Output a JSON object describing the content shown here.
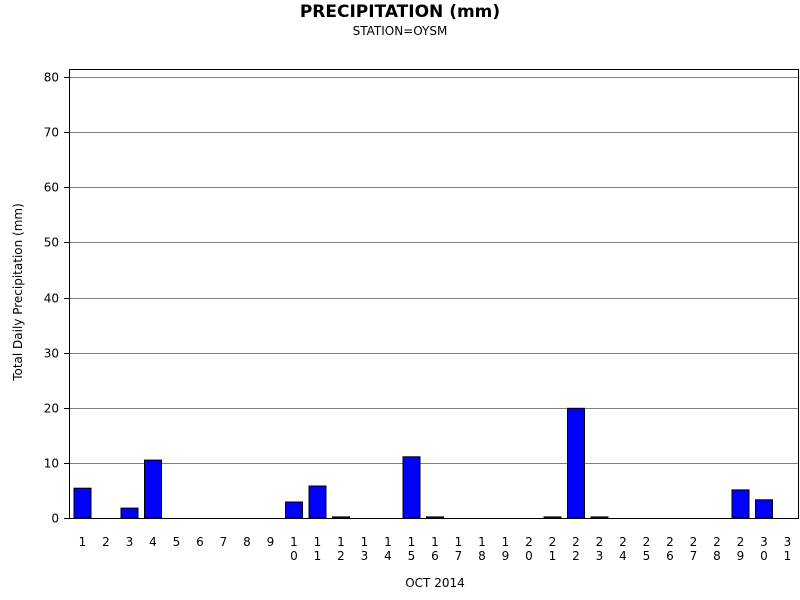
{
  "chart_data": {
    "type": "bar",
    "title": "PRECIPITATION (mm)",
    "subtitle": "STATION=OYSM",
    "xlabel": "OCT 2014",
    "ylabel": "Total Daily Precipitation (mm)",
    "ylim": [
      0,
      82
    ],
    "yticks": [
      0,
      10,
      20,
      30,
      40,
      50,
      60,
      70,
      80
    ],
    "grid": "horizontal",
    "bar_color": "#0000ff",
    "categories": [
      "1",
      "2",
      "3",
      "4",
      "5",
      "6",
      "7",
      "8",
      "9",
      "10",
      "11",
      "12",
      "13",
      "14",
      "15",
      "16",
      "17",
      "18",
      "19",
      "20",
      "21",
      "22",
      "23",
      "24",
      "25",
      "26",
      "27",
      "28",
      "29",
      "30",
      "31"
    ],
    "values": [
      5.4,
      0,
      1.8,
      10.5,
      0,
      0,
      0,
      0,
      0,
      2.9,
      5.8,
      0.2,
      0,
      0,
      11.1,
      0.2,
      0,
      0,
      0,
      0,
      0.2,
      19.9,
      0.2,
      0,
      0,
      0,
      0,
      0,
      5.1,
      3.3,
      0
    ]
  }
}
